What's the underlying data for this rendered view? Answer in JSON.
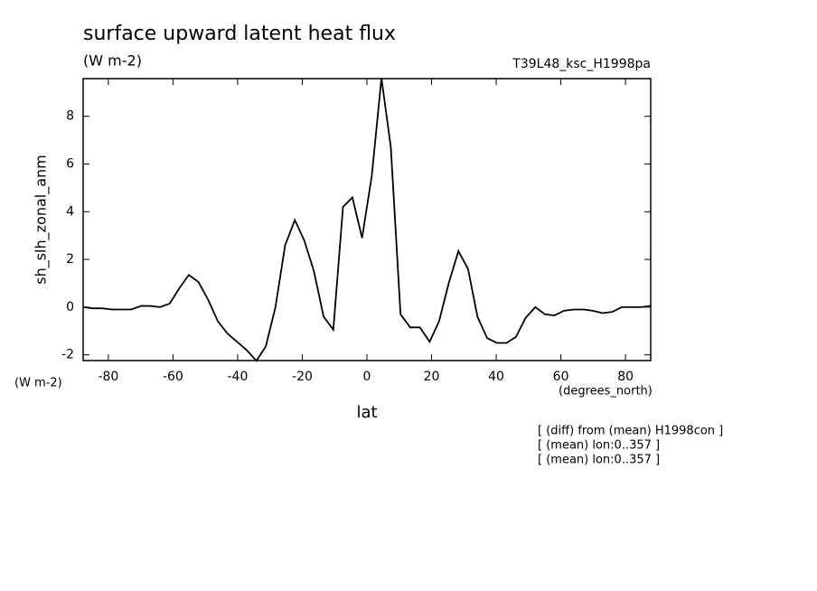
{
  "chart_data": {
    "type": "line",
    "title": "surface upward latent heat flux",
    "subtitle": "(W m-2)",
    "run_label": "T39L48_ksc_H1998pa",
    "y_label": "sh_slh_zonal_anm",
    "y_units": "(W m-2)",
    "x_units": "(degrees_north)",
    "x_label": "lat",
    "notes": [
      "[ (diff) from (mean) H1998con ]",
      "[ (mean) lon:0..357 ]",
      "[ (mean) lon:0..357 ]"
    ],
    "x": [
      -87.8,
      -84.8,
      -81.9,
      -78.9,
      -75.9,
      -72.9,
      -69.9,
      -67.0,
      -64.0,
      -61.0,
      -58.0,
      -55.1,
      -52.1,
      -49.1,
      -46.1,
      -43.2,
      -40.2,
      -37.2,
      -34.2,
      -31.3,
      -28.3,
      -25.3,
      -22.3,
      -19.4,
      -16.4,
      -13.4,
      -10.4,
      -7.4,
      -4.5,
      -1.5,
      1.5,
      4.5,
      7.4,
      10.4,
      13.4,
      16.4,
      19.4,
      22.3,
      25.3,
      28.3,
      31.3,
      34.2,
      37.2,
      40.2,
      43.2,
      46.1,
      49.1,
      52.1,
      55.1,
      58.0,
      61.0,
      64.0,
      67.0,
      69.9,
      72.9,
      75.9,
      78.9,
      81.9,
      84.8,
      87.8
    ],
    "series": [
      {
        "color": "#000000",
        "values": [
          0.0,
          -0.05,
          -0.05,
          -0.1,
          -0.1,
          -0.1,
          0.05,
          0.05,
          0.0,
          0.15,
          0.8,
          1.35,
          1.05,
          0.3,
          -0.6,
          -1.1,
          -1.45,
          -1.8,
          -2.25,
          -1.65,
          0.0,
          2.6,
          3.65,
          2.8,
          1.5,
          -0.4,
          -0.95,
          4.2,
          4.6,
          2.9,
          5.5,
          9.6,
          6.7,
          -0.3,
          -0.85,
          -0.85,
          -1.45,
          -0.6,
          1.0,
          2.35,
          1.6,
          -0.4,
          -1.3,
          -1.5,
          -1.5,
          -1.25,
          -0.45,
          0.0,
          -0.3,
          -0.35,
          -0.15,
          -0.1,
          -0.1,
          -0.15,
          -0.25,
          -0.2,
          0.0,
          0.0,
          0.0,
          0.05
        ]
      }
    ],
    "xlim": [
      -87.8,
      87.8
    ],
    "ylim": [
      -2.24,
      9.58
    ],
    "xticks": [
      -80,
      -60,
      -40,
      -20,
      0,
      20,
      40,
      60,
      80
    ],
    "yticks": [
      -2,
      0,
      2,
      4,
      6,
      8
    ]
  }
}
